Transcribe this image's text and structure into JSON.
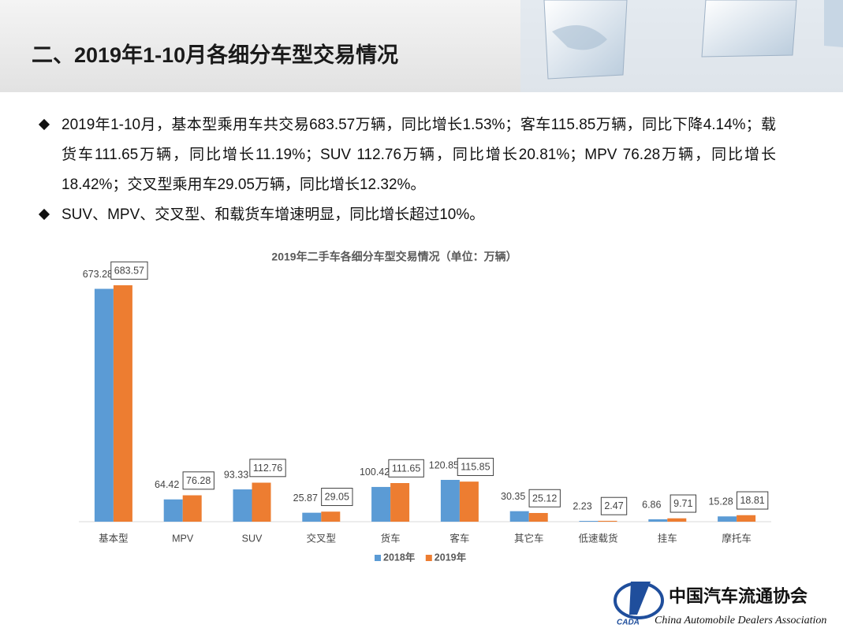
{
  "header": {
    "title": "二、2019年1-10月各细分车型交易情况"
  },
  "bullets": [
    "2019年1-10月，基本型乘用车共交易683.57万辆，同比增长1.53%；客车115.85万辆，同比下降4.14%；载货车111.65万辆，同比增长11.19%；SUV  112.76万辆，同比增长20.81%；MPV 76.28万辆，同比增长18.42%；交叉型乘用车29.05万辆，同比增长12.32%。",
    "SUV、MPV、交叉型、和载货车增速明显，同比增长超过10%。"
  ],
  "chart_data": {
    "type": "bar",
    "title": "2019年二手车各细分车型交易情况（单位：万辆）",
    "categories": [
      "基本型",
      "MPV",
      "SUV",
      "交叉型",
      "货车",
      "客车",
      "其它车",
      "低速载货",
      "挂车",
      "摩托车"
    ],
    "series": [
      {
        "name": "2018年",
        "color": "#5b9bd5",
        "values": [
          673.28,
          64.42,
          93.33,
          25.87,
          100.42,
          120.85,
          30.35,
          2.23,
          6.86,
          15.28
        ]
      },
      {
        "name": "2019年",
        "color": "#ed7d31",
        "values": [
          683.57,
          76.28,
          112.76,
          29.05,
          111.65,
          115.85,
          25.12,
          2.47,
          9.71,
          18.81
        ]
      }
    ],
    "legend": "bottom"
  },
  "logo": {
    "name": "中国汽车流通协会",
    "english": "China Automobile Dealers Association",
    "mark": "CADA"
  }
}
